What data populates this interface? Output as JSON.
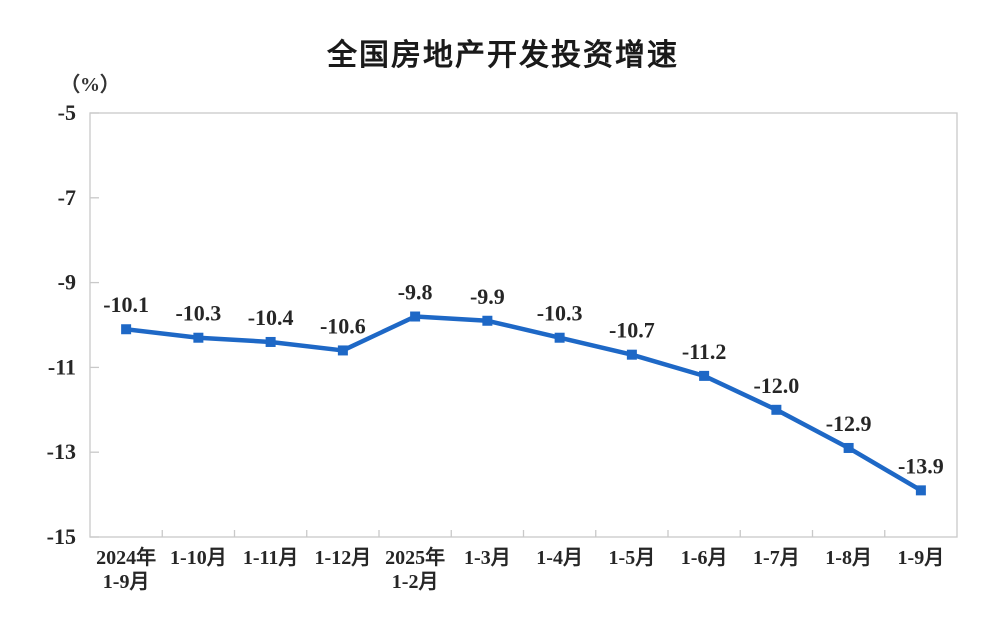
{
  "chart": {
    "title": "全国房地产开发投资增速",
    "unit_label": "（%）"
  },
  "chart_data": {
    "type": "line",
    "title": "全国房地产开发投资增速",
    "ylabel": "（%）",
    "xlabel": "",
    "categories": [
      "2024年\n1-9月",
      "1-10月",
      "1-11月",
      "1-12月",
      "2025年\n1-2月",
      "1-3月",
      "1-4月",
      "1-5月",
      "1-6月",
      "1-7月",
      "1-8月",
      "1-9月"
    ],
    "values": [
      -10.1,
      -10.3,
      -10.4,
      -10.6,
      -9.8,
      -9.9,
      -10.3,
      -10.7,
      -11.2,
      -12.0,
      -12.9,
      -13.9
    ],
    "data_labels": [
      "-10.1",
      "-10.3",
      "-10.4",
      "-10.6",
      "-9.8",
      "-9.9",
      "-10.3",
      "-10.7",
      "-11.2",
      "-12.0",
      "-12.9",
      "-13.9"
    ],
    "ylim": [
      -15,
      -5
    ],
    "yticks": [
      -5,
      -7,
      -9,
      -11,
      -13,
      -15
    ],
    "grid": false,
    "legend": "none",
    "marker": "square",
    "line_color": "#1e68c6",
    "marker_color": "#1e68c6",
    "axis_color": "#c9c9c9",
    "text_color": "#262626"
  }
}
